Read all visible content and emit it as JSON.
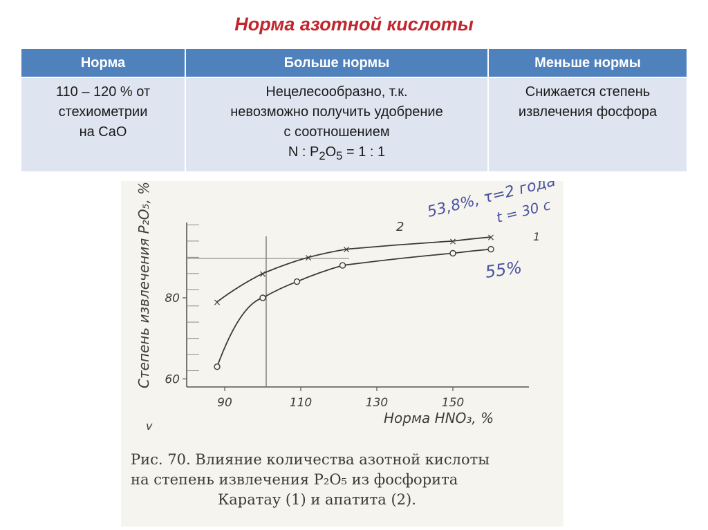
{
  "title": "Норма азотной кислоты",
  "table": {
    "headers": [
      "Норма",
      "Больше нормы",
      "Меньше нормы"
    ],
    "row": {
      "norm": [
        "110 – 120 % от",
        "стехиометрии",
        "на CaO"
      ],
      "more": [
        "Нецелесообразно, т.к.",
        "невозможно получить удобрение",
        "с соотношением"
      ],
      "more_formula": {
        "n": "N : P",
        "p_sub": "2",
        "o": "O",
        "o_sub": "5",
        "tail": " = 1 : 1"
      },
      "less": [
        "Снижается степень",
        "извлечения фосфора"
      ]
    }
  },
  "figure": {
    "ylabel": "Степень извлечения P₂O₅, %",
    "xlabel": "Норма HNO₃, %",
    "handwritten_top": "53,8%, τ=2 года",
    "handwritten_t": "t = 30 c",
    "handwritten_mid": "55%",
    "curve_label_2": "2",
    "curve_label_1": "1",
    "caption": [
      "Рис. 70. Влияние количества азотной кислоты",
      "на степень извлечения P₂O₅ из фосфорита",
      "Каратау (1) и апатита (2)."
    ],
    "stray_mark": "v",
    "chart_data": {
      "type": "line",
      "x_ticks": [
        "90",
        "110",
        "130",
        "150"
      ],
      "y_ticks": [
        "60",
        "80"
      ],
      "xlim": [
        80,
        170
      ],
      "ylim": [
        58,
        102
      ],
      "series": [
        {
          "name": "1",
          "x": [
            88,
            100,
            109,
            121,
            150,
            160
          ],
          "y": [
            63,
            80,
            84,
            88,
            91,
            92
          ]
        },
        {
          "name": "2",
          "x": [
            88,
            100,
            112,
            122,
            150,
            160
          ],
          "y": [
            79,
            86,
            90,
            92,
            94,
            95
          ]
        }
      ]
    }
  }
}
